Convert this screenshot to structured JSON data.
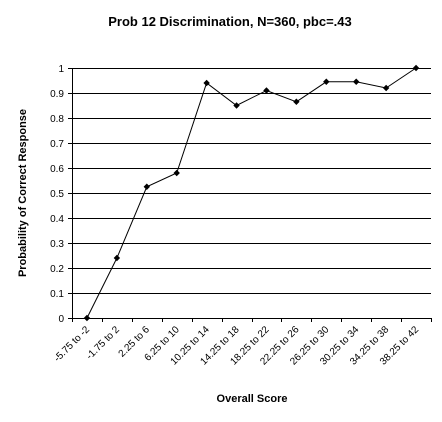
{
  "chart_data": {
    "type": "line",
    "title": "Prob 12 Discrimination, N=360, pbc=.43",
    "xlabel": "Overall Score",
    "ylabel": "Probability of Correct Response",
    "ylim": [
      0,
      1
    ],
    "yticks": [
      "0",
      "0.1",
      "0.2",
      "0.3",
      "0.4",
      "0.5",
      "0.6",
      "0.7",
      "0.8",
      "0.9",
      "1"
    ],
    "grid": true,
    "legend": "none",
    "categories": [
      "-5.75 to -2",
      "-1.75 to 2",
      "2.25 to 6",
      "6.25 to 10",
      "10.25 to 14",
      "14.25 to 18",
      "18.25 to 22",
      "22.25 to 26",
      "26.25 to 30",
      "30.25 to 34",
      "34.25 to 38",
      "38.25 to 42"
    ],
    "series": [
      {
        "values": [
          0.0,
          0.24,
          0.525,
          0.58,
          0.94,
          0.85,
          0.91,
          0.865,
          0.945,
          0.945,
          0.92,
          1.0
        ]
      }
    ]
  }
}
